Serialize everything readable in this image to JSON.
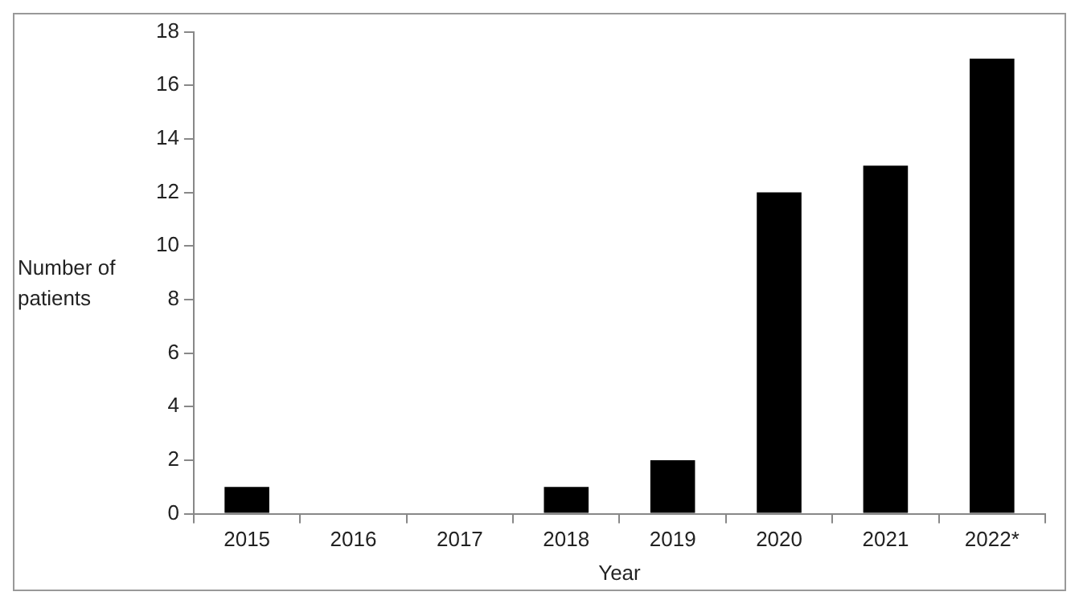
{
  "chart_data": {
    "type": "bar",
    "xlabel": "Year",
    "ylabel": "Number of patients",
    "categories": [
      "2015",
      "2016",
      "2017",
      "2018",
      "2019",
      "2020",
      "2021",
      "2022*"
    ],
    "values": [
      1,
      0,
      0,
      1,
      2,
      12,
      13,
      17
    ],
    "color": "#000000",
    "ylim": [
      0,
      18
    ],
    "yticks": [
      0,
      2,
      4,
      6,
      8,
      10,
      12,
      14,
      16,
      18
    ],
    "grid": false,
    "legend": false
  }
}
